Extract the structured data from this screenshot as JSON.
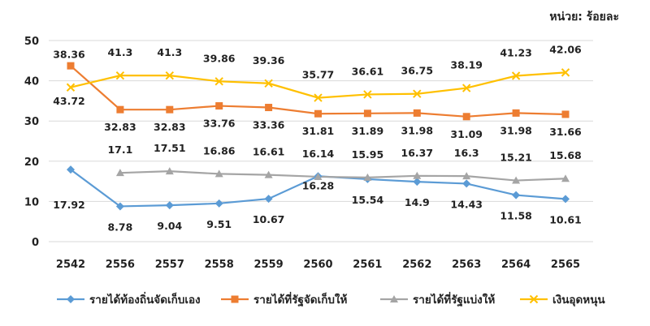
{
  "unit_label": "หน่วย: ร้อยละ",
  "chart_data": {
    "type": "line",
    "x": [
      "2542",
      "2556",
      "2557",
      "2558",
      "2559",
      "2560",
      "2561",
      "2562",
      "2563",
      "2564",
      "2565"
    ],
    "ylim": [
      0,
      50
    ],
    "yticks": [
      "0",
      "10",
      "20",
      "30",
      "40",
      "50"
    ],
    "grid": true,
    "legend_position": "bottom",
    "series": [
      {
        "name": "รายได้ท้องถิ่นจัดเก็บเอง",
        "color": "#5B9BD5",
        "marker": "diamond",
        "values": [
          17.92,
          8.78,
          9.04,
          9.51,
          10.67,
          16.28,
          15.54,
          14.9,
          14.43,
          11.58,
          10.61
        ],
        "labels": [
          "17.92",
          "8.78",
          "9.04",
          "9.51",
          "10.67",
          "16.28",
          "15.54",
          "14.9",
          "14.43",
          "11.58",
          "10.61"
        ]
      },
      {
        "name": "รายได้ที่รัฐจัดเก็บให้",
        "color": "#ED7D31",
        "marker": "square",
        "values": [
          43.72,
          32.83,
          32.83,
          33.76,
          33.36,
          31.81,
          31.89,
          31.98,
          31.09,
          31.98,
          31.66
        ],
        "labels": [
          "43.72",
          "32.83",
          "32.83",
          "33.76",
          "33.36",
          "31.81",
          "31.89",
          "31.98",
          "31.09",
          "31.98",
          "31.66"
        ]
      },
      {
        "name": "รายได้ที่รัฐแบ่งให้",
        "color": "#A5A5A5",
        "marker": "triangle",
        "values": [
          null,
          17.1,
          17.51,
          16.86,
          16.61,
          16.14,
          15.95,
          16.37,
          16.3,
          15.21,
          15.68
        ],
        "labels": [
          null,
          "17.1",
          "17.51",
          "16.86",
          "16.61",
          "16.14",
          "15.95",
          "16.37",
          "16.3",
          "15.21",
          "15.68"
        ]
      },
      {
        "name": "เงินอุดหนุน",
        "color": "#FFC000",
        "marker": "x",
        "values": [
          38.36,
          41.3,
          41.3,
          39.86,
          39.36,
          35.77,
          36.61,
          36.75,
          38.19,
          41.23,
          42.06
        ],
        "labels": [
          "38.36",
          "41.3",
          "41.3",
          "39.86",
          "39.36",
          "35.77",
          "36.61",
          "36.75",
          "38.19",
          "41.23",
          "42.06"
        ]
      }
    ]
  }
}
